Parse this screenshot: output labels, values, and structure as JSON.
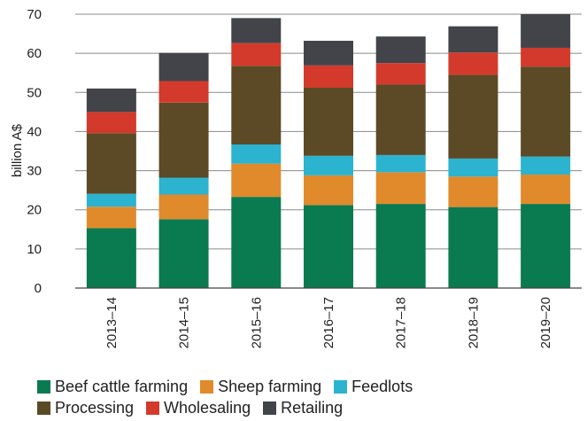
{
  "chart_data": {
    "type": "bar",
    "stacked": true,
    "title": "",
    "xlabel": "",
    "ylabel": "billion A$",
    "ylim": [
      0,
      70
    ],
    "yticks": [
      0,
      10,
      20,
      30,
      40,
      50,
      60,
      70
    ],
    "grid": "horizontal",
    "legend_position": "bottom",
    "categories": [
      "2013–14",
      "2014–15",
      "2015–16",
      "2016–17",
      "2017–18",
      "2018–19",
      "2019–20"
    ],
    "series": [
      {
        "name": "Beef cattle farming",
        "color": "#0a7a50",
        "values": [
          15.3,
          17.6,
          23.3,
          21.2,
          21.5,
          20.7,
          21.5
        ]
      },
      {
        "name": "Sheep farming",
        "color": "#e08a2c",
        "values": [
          5.5,
          6.3,
          8.5,
          7.6,
          8.1,
          7.8,
          7.5
        ]
      },
      {
        "name": "Feedlots",
        "color": "#2bb3cf",
        "values": [
          3.3,
          4.3,
          4.9,
          5.0,
          4.4,
          4.6,
          4.6
        ]
      },
      {
        "name": "Processing",
        "color": "#5c4a26",
        "values": [
          15.5,
          19.2,
          20.1,
          17.4,
          18.0,
          21.4,
          23.0
        ]
      },
      {
        "name": "Wholesaling",
        "color": "#d33a2c",
        "values": [
          5.4,
          5.5,
          5.8,
          5.7,
          5.5,
          5.7,
          4.8
        ]
      },
      {
        "name": "Retailing",
        "color": "#434449",
        "values": [
          6.0,
          7.2,
          6.4,
          6.3,
          6.8,
          6.7,
          8.6
        ]
      }
    ]
  }
}
